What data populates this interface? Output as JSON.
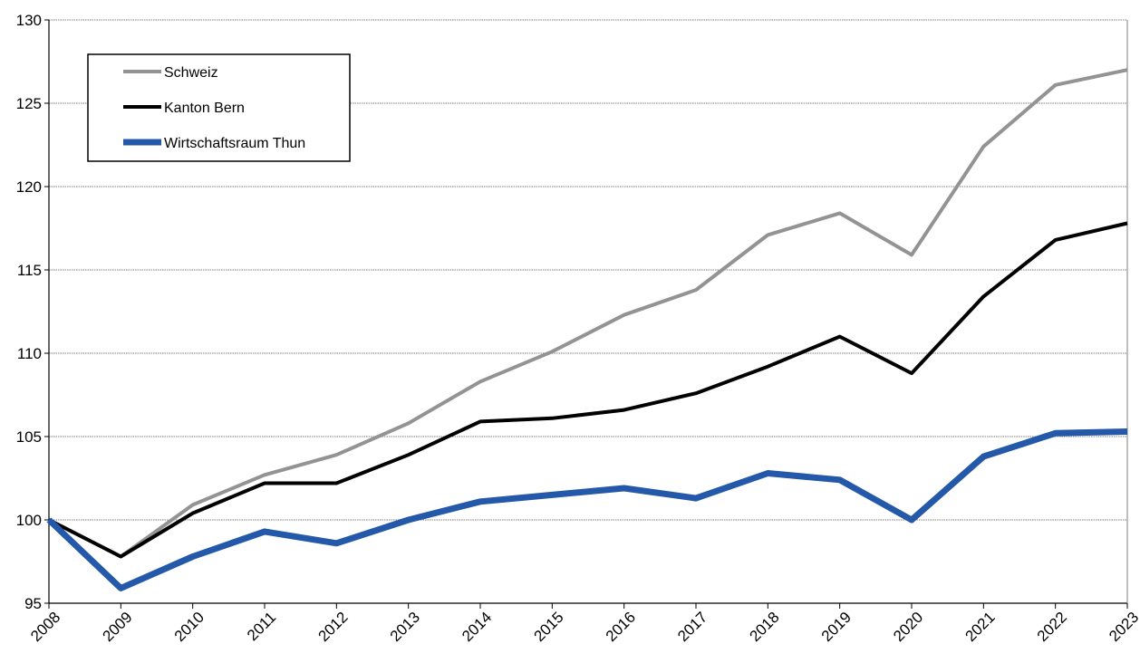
{
  "chart_data": {
    "type": "line",
    "title": "",
    "xlabel": "",
    "ylabel": "",
    "x": [
      "2008",
      "2009",
      "2010",
      "2011",
      "2012",
      "2013",
      "2014",
      "2015",
      "2016",
      "2017",
      "2018",
      "2019",
      "2020",
      "2021",
      "2022",
      "2023"
    ],
    "ylim": [
      95,
      130
    ],
    "yticks": [
      95,
      100,
      105,
      110,
      115,
      120,
      125,
      130
    ],
    "grid": "horizontal",
    "legend_position": "top-left",
    "series": [
      {
        "name": "Schweiz",
        "color": "#939393",
        "values": [
          100.0,
          97.8,
          100.9,
          102.7,
          103.9,
          105.8,
          108.3,
          110.1,
          112.3,
          113.8,
          117.1,
          118.4,
          115.9,
          122.4,
          126.1,
          127.0
        ]
      },
      {
        "name": "Kanton Bern",
        "color": "#000000",
        "values": [
          100.0,
          97.8,
          100.4,
          102.2,
          102.2,
          103.9,
          105.9,
          106.1,
          106.6,
          107.6,
          109.2,
          111.0,
          108.8,
          113.4,
          116.8,
          117.8
        ]
      },
      {
        "name": "Wirtschaftsraum Thun",
        "color": "#2458A8",
        "values": [
          100.0,
          95.9,
          97.8,
          99.3,
          98.6,
          100.0,
          101.1,
          101.5,
          101.9,
          101.3,
          102.8,
          102.4,
          100.0,
          103.8,
          105.2,
          105.3
        ]
      }
    ]
  }
}
